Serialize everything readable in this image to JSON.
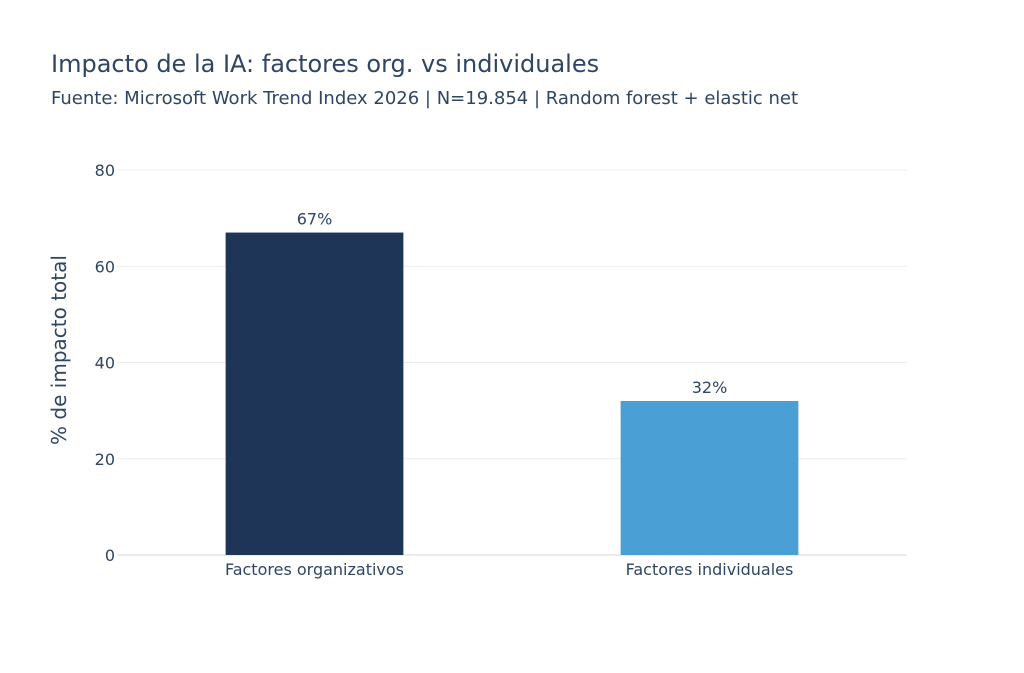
{
  "title": "Impacto de la IA: factores org. vs individuales",
  "subtitle": "Fuente: Microsoft Work Trend Index 2026 | N=19.854 | Random forest + elastic net",
  "chart_data": {
    "type": "bar",
    "categories": [
      "Factores organizativos",
      "Factores individuales"
    ],
    "values": [
      67,
      32
    ],
    "data_labels": [
      "67%",
      "32%"
    ],
    "colors": [
      "#1e3557",
      "#4a9fd5"
    ],
    "xlabel": "",
    "ylabel": "% de impacto total",
    "ylim": [
      0,
      80
    ],
    "yticks": [
      0,
      20,
      40,
      60,
      80
    ],
    "grid": true,
    "legend": "none"
  }
}
